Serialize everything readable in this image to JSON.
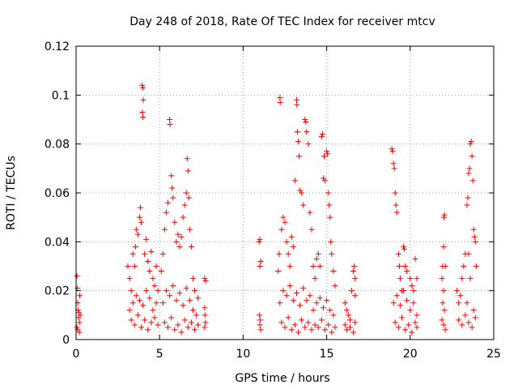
{
  "chart_data": {
    "type": "scatter",
    "title": "Day 248 of 2018, Rate Of TEC Index for receiver mtcv",
    "xlabel": "GPS time / hours",
    "ylabel": "ROTI / TECUs",
    "xlim": [
      0,
      25
    ],
    "ylim": [
      0,
      0.12
    ],
    "xticks": [
      0,
      5,
      10,
      15,
      20,
      25
    ],
    "xtick_labels": [
      "0",
      "5",
      "10",
      "15",
      "20",
      "25"
    ],
    "yticks": [
      0,
      0.02,
      0.04,
      0.06,
      0.08,
      0.1,
      0.12
    ],
    "ytick_labels": [
      "0",
      "0.02",
      "0.04",
      "0.06",
      "0.08",
      "0.1",
      "0.12"
    ],
    "grid": true,
    "marker": "plus",
    "color": "#ff0000",
    "series": [
      {
        "name": "ROTI",
        "points": [
          [
            0.05,
            0.026
          ],
          [
            0.08,
            0.021
          ],
          [
            0.1,
            0.015
          ],
          [
            0.12,
            0.012
          ],
          [
            0.15,
            0.009
          ],
          [
            0.18,
            0.011
          ],
          [
            0.2,
            0.007
          ],
          [
            0.22,
            0.018
          ],
          [
            0.25,
            0.01
          ],
          [
            0.05,
            0.005
          ],
          [
            0.1,
            0.004
          ],
          [
            0.2,
            0.003
          ],
          [
            3.1,
            0.03
          ],
          [
            3.2,
            0.025
          ],
          [
            3.3,
            0.02
          ],
          [
            3.4,
            0.035
          ],
          [
            3.5,
            0.03
          ],
          [
            3.55,
            0.038
          ],
          [
            3.6,
            0.045
          ],
          [
            3.7,
            0.043
          ],
          [
            3.8,
            0.05
          ],
          [
            3.85,
            0.054
          ],
          [
            3.9,
            0.048
          ],
          [
            3.95,
            0.104
          ],
          [
            4.0,
            0.103
          ],
          [
            4.02,
            0.098
          ],
          [
            3.97,
            0.093
          ],
          [
            4.0,
            0.091
          ],
          [
            4.1,
            0.035
          ],
          [
            4.2,
            0.041
          ],
          [
            4.3,
            0.032
          ],
          [
            4.4,
            0.028
          ],
          [
            4.5,
            0.036
          ],
          [
            4.6,
            0.025
          ],
          [
            4.7,
            0.022
          ],
          [
            4.8,
            0.03
          ],
          [
            4.9,
            0.02
          ],
          [
            3.2,
            0.012
          ],
          [
            3.4,
            0.015
          ],
          [
            3.6,
            0.018
          ],
          [
            3.8,
            0.016
          ],
          [
            4.0,
            0.014
          ],
          [
            4.2,
            0.02
          ],
          [
            4.4,
            0.017
          ],
          [
            4.6,
            0.012
          ],
          [
            4.8,
            0.015
          ],
          [
            3.3,
            0.008
          ],
          [
            3.5,
            0.006
          ],
          [
            3.7,
            0.01
          ],
          [
            3.9,
            0.005
          ],
          [
            4.1,
            0.008
          ],
          [
            4.3,
            0.004
          ],
          [
            4.5,
            0.007
          ],
          [
            4.7,
            0.009
          ],
          [
            4.9,
            0.006
          ],
          [
            5.1,
            0.028
          ],
          [
            5.2,
            0.035
          ],
          [
            5.3,
            0.045
          ],
          [
            5.4,
            0.052
          ],
          [
            5.5,
            0.056
          ],
          [
            5.6,
            0.09
          ],
          [
            5.62,
            0.088
          ],
          [
            5.7,
            0.067
          ],
          [
            5.75,
            0.062
          ],
          [
            5.8,
            0.058
          ],
          [
            5.9,
            0.048
          ],
          [
            6.0,
            0.04
          ],
          [
            6.1,
            0.043
          ],
          [
            6.2,
            0.038
          ],
          [
            6.3,
            0.042
          ],
          [
            6.4,
            0.05
          ],
          [
            6.5,
            0.055
          ],
          [
            6.6,
            0.06
          ],
          [
            6.65,
            0.074
          ],
          [
            6.7,
            0.069
          ],
          [
            6.75,
            0.058
          ],
          [
            6.8,
            0.045
          ],
          [
            6.9,
            0.038
          ],
          [
            7.0,
            0.025
          ],
          [
            7.1,
            0.02
          ],
          [
            7.3,
            0.017
          ],
          [
            5.2,
            0.015
          ],
          [
            5.4,
            0.02
          ],
          [
            5.6,
            0.018
          ],
          [
            5.8,
            0.022
          ],
          [
            6.0,
            0.016
          ],
          [
            6.2,
            0.019
          ],
          [
            6.4,
            0.014
          ],
          [
            6.6,
            0.021
          ],
          [
            6.8,
            0.016
          ],
          [
            7.0,
            0.012
          ],
          [
            7.2,
            0.01
          ],
          [
            5.3,
            0.007
          ],
          [
            5.5,
            0.005
          ],
          [
            5.7,
            0.009
          ],
          [
            5.9,
            0.004
          ],
          [
            6.1,
            0.006
          ],
          [
            6.3,
            0.003
          ],
          [
            6.5,
            0.008
          ],
          [
            6.7,
            0.005
          ],
          [
            6.9,
            0.007
          ],
          [
            7.1,
            0.004
          ],
          [
            7.3,
            0.006
          ],
          [
            7.7,
            0.025
          ],
          [
            7.75,
            0.024
          ],
          [
            7.7,
            0.013
          ],
          [
            7.72,
            0.01
          ],
          [
            7.75,
            0.007
          ],
          [
            7.7,
            0.005
          ],
          [
            10.95,
            0.04
          ],
          [
            11.0,
            0.041
          ],
          [
            11.05,
            0.032
          ],
          [
            11.0,
            0.03
          ],
          [
            10.98,
            0.01
          ],
          [
            11.02,
            0.008
          ],
          [
            11.0,
            0.006
          ],
          [
            11.05,
            0.004
          ],
          [
            12.1,
            0.028
          ],
          [
            12.15,
            0.035
          ],
          [
            12.2,
            0.099
          ],
          [
            12.22,
            0.097
          ],
          [
            12.3,
            0.045
          ],
          [
            12.4,
            0.05
          ],
          [
            12.5,
            0.048
          ],
          [
            12.6,
            0.04
          ],
          [
            12.7,
            0.035
          ],
          [
            12.8,
            0.03
          ],
          [
            12.9,
            0.042
          ],
          [
            13.0,
            0.038
          ],
          [
            13.1,
            0.065
          ],
          [
            13.2,
            0.098
          ],
          [
            13.22,
            0.096
          ],
          [
            13.25,
            0.085
          ],
          [
            13.3,
            0.081
          ],
          [
            13.35,
            0.075
          ],
          [
            13.4,
            0.061
          ],
          [
            13.5,
            0.06
          ],
          [
            13.6,
            0.055
          ],
          [
            13.7,
            0.09
          ],
          [
            13.75,
            0.089
          ],
          [
            13.8,
            0.085
          ],
          [
            13.9,
            0.08
          ],
          [
            14.0,
            0.052
          ],
          [
            14.1,
            0.045
          ],
          [
            14.2,
            0.03
          ],
          [
            14.3,
            0.025
          ],
          [
            14.4,
            0.033
          ],
          [
            14.5,
            0.035
          ],
          [
            14.6,
            0.03
          ],
          [
            14.7,
            0.083
          ],
          [
            14.75,
            0.084
          ],
          [
            14.8,
            0.066
          ],
          [
            14.85,
            0.075
          ],
          [
            14.9,
            0.065
          ],
          [
            15.0,
            0.077
          ],
          [
            15.05,
            0.076
          ],
          [
            15.1,
            0.06
          ],
          [
            15.15,
            0.055
          ],
          [
            15.2,
            0.05
          ],
          [
            15.25,
            0.04
          ],
          [
            15.3,
            0.035
          ],
          [
            15.4,
            0.028
          ],
          [
            15.5,
            0.022
          ],
          [
            12.2,
            0.015
          ],
          [
            12.4,
            0.02
          ],
          [
            12.6,
            0.018
          ],
          [
            12.8,
            0.022
          ],
          [
            13.0,
            0.016
          ],
          [
            13.2,
            0.019
          ],
          [
            13.4,
            0.014
          ],
          [
            13.6,
            0.021
          ],
          [
            13.8,
            0.016
          ],
          [
            14.0,
            0.018
          ],
          [
            14.2,
            0.012
          ],
          [
            14.4,
            0.015
          ],
          [
            14.6,
            0.017
          ],
          [
            14.8,
            0.013
          ],
          [
            15.0,
            0.016
          ],
          [
            15.2,
            0.012
          ],
          [
            15.4,
            0.01
          ],
          [
            12.3,
            0.007
          ],
          [
            12.5,
            0.005
          ],
          [
            12.7,
            0.009
          ],
          [
            12.9,
            0.004
          ],
          [
            13.1,
            0.006
          ],
          [
            13.3,
            0.003
          ],
          [
            13.5,
            0.008
          ],
          [
            13.7,
            0.005
          ],
          [
            13.9,
            0.007
          ],
          [
            14.1,
            0.004
          ],
          [
            14.3,
            0.006
          ],
          [
            14.5,
            0.005
          ],
          [
            14.7,
            0.008
          ],
          [
            14.9,
            0.004
          ],
          [
            15.1,
            0.006
          ],
          [
            15.3,
            0.003
          ],
          [
            15.5,
            0.005
          ],
          [
            16.1,
            0.015
          ],
          [
            16.2,
            0.012
          ],
          [
            16.3,
            0.01
          ],
          [
            16.4,
            0.008
          ],
          [
            16.5,
            0.02
          ],
          [
            16.6,
            0.028
          ],
          [
            16.65,
            0.03
          ],
          [
            16.7,
            0.025
          ],
          [
            16.7,
            0.018
          ],
          [
            16.1,
            0.006
          ],
          [
            16.2,
            0.004
          ],
          [
            16.4,
            0.005
          ],
          [
            16.6,
            0.003
          ],
          [
            16.7,
            0.007
          ],
          [
            18.9,
            0.078
          ],
          [
            18.95,
            0.077
          ],
          [
            19.0,
            0.072
          ],
          [
            19.05,
            0.07
          ],
          [
            19.1,
            0.06
          ],
          [
            19.15,
            0.055
          ],
          [
            19.2,
            0.052
          ],
          [
            19.3,
            0.035
          ],
          [
            19.35,
            0.03
          ],
          [
            19.4,
            0.025
          ],
          [
            19.5,
            0.02
          ],
          [
            19.6,
            0.038
          ],
          [
            19.65,
            0.037
          ],
          [
            19.7,
            0.03
          ],
          [
            19.8,
            0.028
          ],
          [
            20.0,
            0.025
          ],
          [
            20.1,
            0.022
          ],
          [
            20.2,
            0.02
          ],
          [
            20.3,
            0.033
          ],
          [
            20.4,
            0.025
          ],
          [
            19.0,
            0.015
          ],
          [
            19.2,
            0.018
          ],
          [
            19.4,
            0.014
          ],
          [
            19.6,
            0.02
          ],
          [
            19.8,
            0.016
          ],
          [
            20.0,
            0.012
          ],
          [
            20.2,
            0.015
          ],
          [
            20.4,
            0.01
          ],
          [
            19.1,
            0.007
          ],
          [
            19.3,
            0.005
          ],
          [
            19.5,
            0.009
          ],
          [
            19.7,
            0.004
          ],
          [
            19.9,
            0.006
          ],
          [
            20.1,
            0.003
          ],
          [
            20.3,
            0.007
          ],
          [
            20.4,
            0.005
          ],
          [
            21.9,
            0.025
          ],
          [
            21.95,
            0.03
          ],
          [
            22.0,
            0.038
          ],
          [
            22.02,
            0.05
          ],
          [
            22.05,
            0.051
          ],
          [
            22.1,
            0.03
          ],
          [
            22.0,
            0.02
          ],
          [
            21.95,
            0.015
          ],
          [
            22.05,
            0.012
          ],
          [
            21.9,
            0.008
          ],
          [
            22.0,
            0.006
          ],
          [
            22.1,
            0.004
          ],
          [
            22.8,
            0.02
          ],
          [
            22.9,
            0.015
          ],
          [
            23.0,
            0.018
          ],
          [
            23.1,
            0.025
          ],
          [
            23.2,
            0.03
          ],
          [
            23.3,
            0.035
          ],
          [
            23.4,
            0.055
          ],
          [
            23.45,
            0.058
          ],
          [
            23.5,
            0.068
          ],
          [
            23.55,
            0.07
          ],
          [
            23.6,
            0.08
          ],
          [
            23.65,
            0.081
          ],
          [
            23.7,
            0.075
          ],
          [
            23.75,
            0.065
          ],
          [
            23.8,
            0.045
          ],
          [
            23.85,
            0.042
          ],
          [
            23.9,
            0.04
          ],
          [
            23.95,
            0.03
          ],
          [
            23.5,
            0.035
          ],
          [
            23.6,
            0.025
          ],
          [
            22.9,
            0.008
          ],
          [
            23.1,
            0.006
          ],
          [
            23.3,
            0.01
          ],
          [
            23.5,
            0.007
          ],
          [
            23.7,
            0.005
          ],
          [
            23.9,
            0.009
          ],
          [
            23.4,
            0.015
          ],
          [
            23.8,
            0.012
          ]
        ]
      }
    ]
  }
}
